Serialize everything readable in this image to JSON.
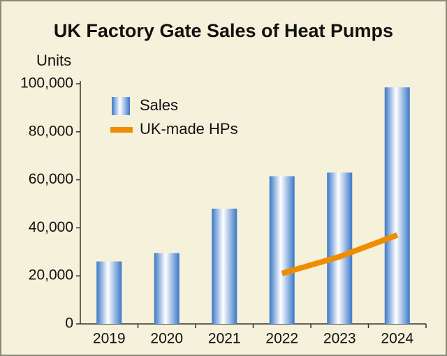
{
  "chart_data": {
    "type": "bar",
    "title": "UK Factory Gate Sales of Heat Pumps",
    "y_label": "Units",
    "categories": [
      "2019",
      "2020",
      "2021",
      "2022",
      "2023",
      "2024"
    ],
    "series": [
      {
        "name": "Sales",
        "type": "bar",
        "color": "#3a78c8",
        "values": [
          26000,
          29500,
          48000,
          61500,
          63000,
          98500
        ]
      },
      {
        "name": "UK-made HPs",
        "type": "line",
        "color": "#f08c00",
        "values": [
          null,
          null,
          null,
          21000,
          28000,
          37000
        ]
      }
    ],
    "ylim": [
      0,
      100000
    ],
    "yticks": [
      0,
      {
        "value": 20000,
        "label": "20,000"
      },
      {
        "value": 40000,
        "label": "40,000"
      },
      {
        "value": 60000,
        "label": "60,000"
      },
      {
        "value": 80000,
        "label": "80,000"
      },
      {
        "value": 100000,
        "label": "100,000"
      }
    ],
    "legend": "upper left"
  }
}
